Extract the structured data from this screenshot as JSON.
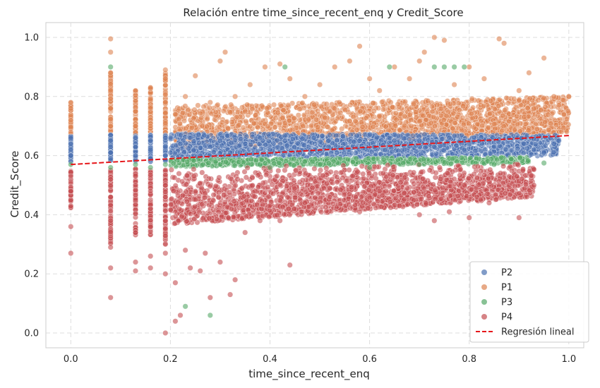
{
  "chart_data": {
    "type": "scatter",
    "title": "Relación entre time_since_recent_enq y Credit_Score",
    "xlabel": "time_since_recent_enq",
    "ylabel": "Credit_Score",
    "xlim": [
      -0.05,
      1.03
    ],
    "ylim": [
      -0.05,
      1.05
    ],
    "xticks": [
      "0.0",
      "0.2",
      "0.4",
      "0.6",
      "0.8",
      "1.0"
    ],
    "yticks": [
      "0.0",
      "0.2",
      "0.4",
      "0.6",
      "0.8",
      "1.0"
    ],
    "grid": true,
    "legend_position": "bottom-right",
    "series": [
      {
        "name": "P2",
        "color": "#4c72b0",
        "points": [
          [
            0.0,
            0.58
          ],
          [
            0.0,
            0.6
          ],
          [
            0.0,
            0.62
          ],
          [
            0.0,
            0.64
          ],
          [
            0.0,
            0.66
          ],
          [
            0.08,
            0.59
          ],
          [
            0.08,
            0.61
          ],
          [
            0.08,
            0.63
          ],
          [
            0.08,
            0.65
          ],
          [
            0.08,
            0.67
          ],
          [
            0.13,
            0.6
          ],
          [
            0.13,
            0.63
          ],
          [
            0.13,
            0.66
          ],
          [
            0.16,
            0.59
          ],
          [
            0.16,
            0.62
          ],
          [
            0.16,
            0.65
          ],
          [
            0.19,
            0.6
          ],
          [
            0.19,
            0.63
          ],
          [
            0.19,
            0.66
          ],
          [
            0.2,
            0.61
          ],
          [
            0.22,
            0.64
          ],
          [
            0.24,
            0.66
          ],
          [
            0.26,
            0.6
          ],
          [
            0.28,
            0.63
          ],
          [
            0.3,
            0.65
          ],
          [
            0.32,
            0.61
          ],
          [
            0.35,
            0.64
          ],
          [
            0.38,
            0.66
          ],
          [
            0.4,
            0.62
          ],
          [
            0.43,
            0.65
          ],
          [
            0.46,
            0.61
          ],
          [
            0.49,
            0.64
          ],
          [
            0.52,
            0.67
          ],
          [
            0.55,
            0.62
          ],
          [
            0.58,
            0.65
          ],
          [
            0.61,
            0.63
          ],
          [
            0.64,
            0.66
          ],
          [
            0.67,
            0.62
          ],
          [
            0.7,
            0.65
          ],
          [
            0.73,
            0.63
          ],
          [
            0.76,
            0.66
          ],
          [
            0.79,
            0.62
          ],
          [
            0.82,
            0.65
          ],
          [
            0.85,
            0.63
          ],
          [
            0.88,
            0.66
          ],
          [
            0.91,
            0.64
          ],
          [
            0.93,
            0.62
          ],
          [
            0.95,
            0.61
          ],
          [
            0.97,
            0.64
          ],
          [
            0.98,
            0.65
          ]
        ]
      },
      {
        "name": "P1",
        "color": "#dd8452",
        "points": [
          [
            0.0,
            0.68
          ],
          [
            0.0,
            0.72
          ],
          [
            0.0,
            0.76
          ],
          [
            0.0,
            0.78
          ],
          [
            0.08,
            0.7
          ],
          [
            0.08,
            0.76
          ],
          [
            0.08,
            0.82
          ],
          [
            0.08,
            0.88
          ],
          [
            0.08,
            0.95
          ],
          [
            0.08,
            0.995
          ],
          [
            0.13,
            0.7
          ],
          [
            0.13,
            0.75
          ],
          [
            0.13,
            0.82
          ],
          [
            0.16,
            0.7
          ],
          [
            0.16,
            0.76
          ],
          [
            0.16,
            0.83
          ],
          [
            0.19,
            0.71
          ],
          [
            0.19,
            0.78
          ],
          [
            0.19,
            0.86
          ],
          [
            0.19,
            0.89
          ],
          [
            0.21,
            0.74
          ],
          [
            0.23,
            0.8
          ],
          [
            0.25,
            0.87
          ],
          [
            0.28,
            0.78
          ],
          [
            0.3,
            0.92
          ],
          [
            0.31,
            0.95
          ],
          [
            0.33,
            0.8
          ],
          [
            0.36,
            0.84
          ],
          [
            0.39,
            0.9
          ],
          [
            0.42,
            0.91
          ],
          [
            0.44,
            0.86
          ],
          [
            0.47,
            0.8
          ],
          [
            0.5,
            0.84
          ],
          [
            0.53,
            0.9
          ],
          [
            0.56,
            0.92
          ],
          [
            0.58,
            0.97
          ],
          [
            0.6,
            0.86
          ],
          [
            0.62,
            0.82
          ],
          [
            0.65,
            0.9
          ],
          [
            0.68,
            0.86
          ],
          [
            0.7,
            0.92
          ],
          [
            0.71,
            0.95
          ],
          [
            0.73,
            1.0
          ],
          [
            0.75,
            0.99
          ],
          [
            0.77,
            0.84
          ],
          [
            0.8,
            0.9
          ],
          [
            0.83,
            0.86
          ],
          [
            0.86,
            0.995
          ],
          [
            0.87,
            0.98
          ],
          [
            0.9,
            0.82
          ],
          [
            0.92,
            0.88
          ],
          [
            0.95,
            0.93
          ],
          [
            0.97,
            0.8
          ],
          [
            0.98,
            0.77
          ],
          [
            0.99,
            0.74
          ],
          [
            1.0,
            0.8
          ]
        ]
      },
      {
        "name": "P3",
        "color": "#55a868",
        "points": [
          [
            0.0,
            0.57
          ],
          [
            0.08,
            0.56
          ],
          [
            0.08,
            0.9
          ],
          [
            0.13,
            0.57
          ],
          [
            0.16,
            0.56
          ],
          [
            0.19,
            0.57
          ],
          [
            0.23,
            0.09
          ],
          [
            0.28,
            0.06
          ],
          [
            0.3,
            0.57
          ],
          [
            0.4,
            0.56
          ],
          [
            0.43,
            0.9
          ],
          [
            0.5,
            0.57
          ],
          [
            0.6,
            0.56
          ],
          [
            0.64,
            0.9
          ],
          [
            0.7,
            0.57
          ],
          [
            0.73,
            0.9
          ],
          [
            0.75,
            0.9
          ],
          [
            0.77,
            0.9
          ],
          [
            0.79,
            0.9
          ],
          [
            0.85,
            0.57
          ],
          [
            0.95,
            0.575
          ]
        ]
      },
      {
        "name": "P4",
        "color": "#c44e52",
        "points": [
          [
            0.0,
            0.27
          ],
          [
            0.0,
            0.36
          ],
          [
            0.0,
            0.43
          ],
          [
            0.0,
            0.48
          ],
          [
            0.0,
            0.53
          ],
          [
            0.08,
            0.12
          ],
          [
            0.08,
            0.22
          ],
          [
            0.08,
            0.29
          ],
          [
            0.08,
            0.38
          ],
          [
            0.08,
            0.46
          ],
          [
            0.08,
            0.52
          ],
          [
            0.13,
            0.21
          ],
          [
            0.13,
            0.24
          ],
          [
            0.13,
            0.34
          ],
          [
            0.13,
            0.45
          ],
          [
            0.16,
            0.22
          ],
          [
            0.16,
            0.26
          ],
          [
            0.16,
            0.36
          ],
          [
            0.16,
            0.48
          ],
          [
            0.19,
            0.0
          ],
          [
            0.19,
            0.2
          ],
          [
            0.19,
            0.27
          ],
          [
            0.19,
            0.38
          ],
          [
            0.19,
            0.5
          ],
          [
            0.21,
            0.04
          ],
          [
            0.21,
            0.17
          ],
          [
            0.22,
            0.06
          ],
          [
            0.23,
            0.28
          ],
          [
            0.24,
            0.22
          ],
          [
            0.26,
            0.21
          ],
          [
            0.27,
            0.27
          ],
          [
            0.28,
            0.12
          ],
          [
            0.3,
            0.24
          ],
          [
            0.32,
            0.13
          ],
          [
            0.33,
            0.18
          ],
          [
            0.35,
            0.34
          ],
          [
            0.38,
            0.38
          ],
          [
            0.42,
            0.38
          ],
          [
            0.44,
            0.23
          ],
          [
            0.47,
            0.44
          ],
          [
            0.52,
            0.46
          ],
          [
            0.58,
            0.41
          ],
          [
            0.62,
            0.48
          ],
          [
            0.66,
            0.43
          ],
          [
            0.7,
            0.4
          ],
          [
            0.73,
            0.38
          ],
          [
            0.76,
            0.41
          ],
          [
            0.8,
            0.39
          ],
          [
            0.84,
            0.44
          ],
          [
            0.9,
            0.39
          ],
          [
            0.93,
            0.5
          ]
        ]
      }
    ],
    "regression": {
      "name": "Regresión lineal",
      "color": "#e6161a",
      "x": [
        0.0,
        1.0
      ],
      "y": [
        0.57,
        0.668
      ]
    },
    "bands": [
      {
        "series": 1,
        "color": "#dd8452",
        "count": 2200,
        "x0": 0.21,
        "x1": 1.0,
        "y_at_0": 0.61,
        "y_at_1": 0.68,
        "top_at_0": 0.76,
        "top_at_1": 0.8
      },
      {
        "series": 0,
        "color": "#4c72b0",
        "count": 1800,
        "x0": 0.2,
        "x1": 0.98,
        "y_at_0": 0.585,
        "y_at_1": 0.6,
        "top_at_0": 0.675,
        "top_at_1": 0.67
      },
      {
        "series": 2,
        "color": "#55a868",
        "count": 650,
        "x0": 0.2,
        "x1": 0.92,
        "y_at_0": 0.56,
        "y_at_1": 0.575,
        "top_at_0": 0.585,
        "top_at_1": 0.595
      },
      {
        "series": 3,
        "color": "#c44e52",
        "count": 1900,
        "x0": 0.2,
        "x1": 0.93,
        "y_at_0": 0.34,
        "y_at_1": 0.47,
        "top_at_0": 0.56,
        "top_at_1": 0.58
      }
    ],
    "columns": [
      {
        "x": 0.0,
        "series": 1,
        "y0": 0.66,
        "y1": 0.78,
        "count": 40
      },
      {
        "x": 0.0,
        "series": 0,
        "y0": 0.58,
        "y1": 0.67,
        "count": 40
      },
      {
        "x": 0.0,
        "series": 3,
        "y0": 0.42,
        "y1": 0.56,
        "count": 35
      },
      {
        "x": 0.08,
        "series": 1,
        "y0": 0.68,
        "y1": 0.88,
        "count": 70
      },
      {
        "x": 0.08,
        "series": 0,
        "y0": 0.58,
        "y1": 0.67,
        "count": 50
      },
      {
        "x": 0.08,
        "series": 3,
        "y0": 0.3,
        "y1": 0.56,
        "count": 70
      },
      {
        "x": 0.13,
        "series": 1,
        "y0": 0.67,
        "y1": 0.82,
        "count": 60
      },
      {
        "x": 0.13,
        "series": 0,
        "y0": 0.58,
        "y1": 0.67,
        "count": 40
      },
      {
        "x": 0.13,
        "series": 3,
        "y0": 0.33,
        "y1": 0.56,
        "count": 60
      },
      {
        "x": 0.16,
        "series": 1,
        "y0": 0.67,
        "y1": 0.83,
        "count": 60
      },
      {
        "x": 0.16,
        "series": 0,
        "y0": 0.58,
        "y1": 0.67,
        "count": 40
      },
      {
        "x": 0.16,
        "series": 3,
        "y0": 0.33,
        "y1": 0.56,
        "count": 60
      },
      {
        "x": 0.19,
        "series": 1,
        "y0": 0.67,
        "y1": 0.88,
        "count": 70
      },
      {
        "x": 0.19,
        "series": 0,
        "y0": 0.58,
        "y1": 0.67,
        "count": 40
      },
      {
        "x": 0.19,
        "series": 3,
        "y0": 0.3,
        "y1": 0.56,
        "count": 70
      }
    ]
  }
}
